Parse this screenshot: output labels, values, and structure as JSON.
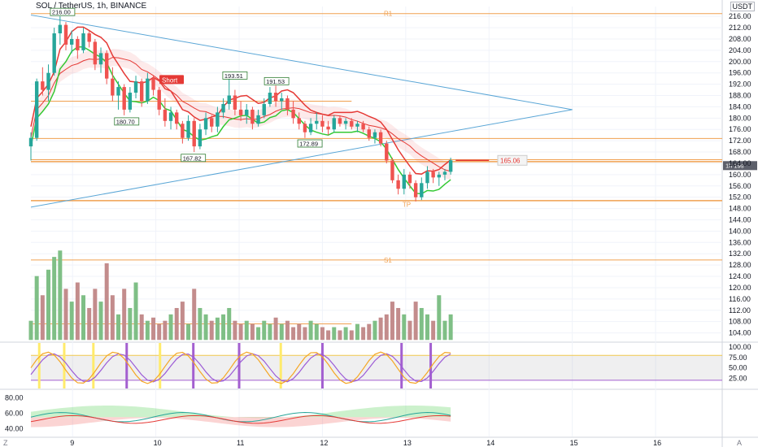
{
  "header": {
    "title": "SOL / TetherUS, 1h, BINANCE",
    "currency": "USDT"
  },
  "corners": {
    "bottom_left": "Z",
    "bottom_right": "A"
  },
  "colors": {
    "up": "#26a69a",
    "down": "#ef5350",
    "vol_up": "#7fbf86",
    "vol_down": "#c38c8c",
    "orange": "#f0a050",
    "blue_line": "#5aa6d6",
    "red_ma": "#e53935",
    "green_ma": "#34c934",
    "stoch_k": "#f5a623",
    "stoch_d": "#9c5bd6",
    "yellow_bar": "#ffeb6b",
    "purple_bar": "#a35fd0"
  },
  "chart_data": [
    {
      "type": "candlestick",
      "title": "SOL / TetherUS, 1h, BINANCE",
      "x_ticks": [
        "9",
        "10",
        "11",
        "12",
        "13",
        "14",
        "15",
        "16"
      ],
      "y_ticks": [
        216.0,
        212.0,
        208.0,
        204.0,
        200.0,
        196.0,
        192.0,
        188.0,
        184.0,
        180.0,
        176.0,
        172.0,
        168.0,
        164.0,
        160.0,
        156.0,
        152.0,
        148.0,
        144.0,
        140.0,
        136.0,
        132.0,
        128.0,
        124.0,
        120.0,
        116.0,
        112.0,
        108.0,
        104.0
      ],
      "ylim": [
        101.0,
        219.5
      ],
      "last_price": "165.06",
      "countdown": "1h 19s",
      "levels": [
        {
          "label": "R1",
          "value": 217.0
        },
        {
          "label": "S1",
          "value": 129.8
        }
      ],
      "horizontal_lines": [
        186.0,
        172.8,
        165.3,
        164.6,
        150.8,
        107.2
      ],
      "triangle": {
        "upper": [
          [
            8.5,
            216.5
          ],
          [
            15.0,
            183.0
          ]
        ],
        "lower": [
          [
            8.5,
            148.5
          ],
          [
            15.0,
            183.0
          ]
        ]
      },
      "annotations": [
        {
          "text": "216.00",
          "x": 8.88,
          "y": 216.0,
          "kind": "high"
        },
        {
          "text": "193.51",
          "x": 10.95,
          "y": 193.5,
          "kind": "high"
        },
        {
          "text": "191.53",
          "x": 11.45,
          "y": 191.5,
          "kind": "high"
        },
        {
          "text": "180.70",
          "x": 9.65,
          "y": 180.7,
          "kind": "low"
        },
        {
          "text": "167.82",
          "x": 10.45,
          "y": 167.8,
          "kind": "low"
        },
        {
          "text": "172.89",
          "x": 11.85,
          "y": 172.9,
          "kind": "low"
        },
        {
          "text": "Short",
          "x": 10.18,
          "y": 193.5,
          "kind": "signal"
        },
        {
          "text": "TP",
          "x": 13.0,
          "y": 151.5,
          "kind": "tp"
        }
      ],
      "candles": [
        {
          "x": 8.5,
          "o": 170.0,
          "h": 175.0,
          "l": 165.0,
          "c": 173.0
        },
        {
          "x": 8.57,
          "o": 173.0,
          "h": 194.0,
          "l": 172.0,
          "c": 193.0
        },
        {
          "x": 8.64,
          "o": 193.0,
          "h": 198.0,
          "l": 188.0,
          "c": 190.0
        },
        {
          "x": 8.71,
          "o": 190.0,
          "h": 199.0,
          "l": 186.0,
          "c": 196.0
        },
        {
          "x": 8.78,
          "o": 196.0,
          "h": 212.0,
          "l": 195.0,
          "c": 210.0
        },
        {
          "x": 8.85,
          "o": 210.0,
          "h": 216.0,
          "l": 206.0,
          "c": 213.0
        },
        {
          "x": 8.92,
          "o": 213.0,
          "h": 214.0,
          "l": 204.0,
          "c": 206.0
        },
        {
          "x": 8.99,
          "o": 206.0,
          "h": 211.0,
          "l": 203.0,
          "c": 208.0
        },
        {
          "x": 9.06,
          "o": 208.0,
          "h": 209.0,
          "l": 201.0,
          "c": 204.0
        },
        {
          "x": 9.13,
          "o": 204.0,
          "h": 212.0,
          "l": 203.0,
          "c": 210.0
        },
        {
          "x": 9.2,
          "o": 210.0,
          "h": 211.0,
          "l": 205.0,
          "c": 207.0
        },
        {
          "x": 9.27,
          "o": 207.0,
          "h": 208.0,
          "l": 197.0,
          "c": 199.0
        },
        {
          "x": 9.34,
          "o": 199.0,
          "h": 205.0,
          "l": 196.0,
          "c": 203.0
        },
        {
          "x": 9.41,
          "o": 203.0,
          "h": 204.0,
          "l": 192.0,
          "c": 194.0
        },
        {
          "x": 9.48,
          "o": 194.0,
          "h": 198.0,
          "l": 186.0,
          "c": 188.0
        },
        {
          "x": 9.55,
          "o": 188.0,
          "h": 193.0,
          "l": 183.0,
          "c": 191.0
        },
        {
          "x": 9.62,
          "o": 191.0,
          "h": 192.0,
          "l": 181.0,
          "c": 183.0
        },
        {
          "x": 9.69,
          "o": 183.0,
          "h": 191.0,
          "l": 182.0,
          "c": 189.0
        },
        {
          "x": 9.76,
          "o": 189.0,
          "h": 195.0,
          "l": 187.0,
          "c": 193.0
        },
        {
          "x": 9.83,
          "o": 193.0,
          "h": 194.0,
          "l": 184.0,
          "c": 186.0
        },
        {
          "x": 9.9,
          "o": 186.0,
          "h": 196.0,
          "l": 185.0,
          "c": 194.0
        },
        {
          "x": 9.97,
          "o": 194.0,
          "h": 195.0,
          "l": 188.0,
          "c": 190.0
        },
        {
          "x": 10.04,
          "o": 190.0,
          "h": 191.0,
          "l": 181.0,
          "c": 183.0
        },
        {
          "x": 10.11,
          "o": 183.0,
          "h": 187.0,
          "l": 177.0,
          "c": 179.0
        },
        {
          "x": 10.18,
          "o": 179.0,
          "h": 184.0,
          "l": 176.0,
          "c": 182.0
        },
        {
          "x": 10.25,
          "o": 182.0,
          "h": 183.0,
          "l": 176.0,
          "c": 178.0
        },
        {
          "x": 10.32,
          "o": 178.0,
          "h": 179.0,
          "l": 171.0,
          "c": 173.0
        },
        {
          "x": 10.39,
          "o": 173.0,
          "h": 181.0,
          "l": 172.0,
          "c": 179.0
        },
        {
          "x": 10.46,
          "o": 179.0,
          "h": 180.0,
          "l": 168.0,
          "c": 170.0
        },
        {
          "x": 10.53,
          "o": 170.0,
          "h": 178.0,
          "l": 169.0,
          "c": 176.0
        },
        {
          "x": 10.6,
          "o": 176.0,
          "h": 182.0,
          "l": 174.0,
          "c": 180.0
        },
        {
          "x": 10.67,
          "o": 180.0,
          "h": 181.0,
          "l": 175.0,
          "c": 177.0
        },
        {
          "x": 10.74,
          "o": 177.0,
          "h": 184.0,
          "l": 175.0,
          "c": 182.0
        },
        {
          "x": 10.81,
          "o": 182.0,
          "h": 187.0,
          "l": 180.0,
          "c": 185.0
        },
        {
          "x": 10.88,
          "o": 185.0,
          "h": 194.0,
          "l": 183.0,
          "c": 188.0
        },
        {
          "x": 10.95,
          "o": 188.0,
          "h": 190.0,
          "l": 181.0,
          "c": 183.0
        },
        {
          "x": 11.02,
          "o": 183.0,
          "h": 186.0,
          "l": 179.0,
          "c": 181.0
        },
        {
          "x": 11.09,
          "o": 181.0,
          "h": 185.0,
          "l": 178.0,
          "c": 183.0
        },
        {
          "x": 11.16,
          "o": 183.0,
          "h": 184.0,
          "l": 176.0,
          "c": 178.0
        },
        {
          "x": 11.23,
          "o": 178.0,
          "h": 183.0,
          "l": 177.0,
          "c": 181.0
        },
        {
          "x": 11.3,
          "o": 181.0,
          "h": 187.0,
          "l": 180.0,
          "c": 185.0
        },
        {
          "x": 11.37,
          "o": 185.0,
          "h": 191.0,
          "l": 184.0,
          "c": 189.0
        },
        {
          "x": 11.44,
          "o": 189.0,
          "h": 191.5,
          "l": 184.0,
          "c": 186.0
        },
        {
          "x": 11.51,
          "o": 186.0,
          "h": 189.0,
          "l": 183.0,
          "c": 187.0
        },
        {
          "x": 11.58,
          "o": 187.0,
          "h": 188.0,
          "l": 181.0,
          "c": 183.0
        },
        {
          "x": 11.65,
          "o": 183.0,
          "h": 186.0,
          "l": 178.0,
          "c": 180.0
        },
        {
          "x": 11.72,
          "o": 180.0,
          "h": 182.0,
          "l": 176.0,
          "c": 178.0
        },
        {
          "x": 11.79,
          "o": 178.0,
          "h": 179.0,
          "l": 173.0,
          "c": 175.0
        },
        {
          "x": 11.86,
          "o": 175.0,
          "h": 180.0,
          "l": 174.0,
          "c": 178.0
        },
        {
          "x": 11.93,
          "o": 178.0,
          "h": 182.0,
          "l": 176.0,
          "c": 179.0
        },
        {
          "x": 12.0,
          "o": 179.0,
          "h": 181.0,
          "l": 175.0,
          "c": 177.0
        },
        {
          "x": 12.07,
          "o": 177.0,
          "h": 179.0,
          "l": 174.0,
          "c": 176.0
        },
        {
          "x": 12.14,
          "o": 176.0,
          "h": 181.0,
          "l": 175.0,
          "c": 180.0
        },
        {
          "x": 12.21,
          "o": 180.0,
          "h": 181.0,
          "l": 177.0,
          "c": 178.0
        },
        {
          "x": 12.28,
          "o": 178.0,
          "h": 180.0,
          "l": 176.0,
          "c": 179.0
        },
        {
          "x": 12.35,
          "o": 179.0,
          "h": 180.0,
          "l": 176.0,
          "c": 177.0
        },
        {
          "x": 12.42,
          "o": 177.0,
          "h": 179.0,
          "l": 175.0,
          "c": 178.0
        },
        {
          "x": 12.49,
          "o": 178.0,
          "h": 179.0,
          "l": 175.0,
          "c": 176.0
        },
        {
          "x": 12.56,
          "o": 176.0,
          "h": 177.0,
          "l": 172.0,
          "c": 173.0
        },
        {
          "x": 12.63,
          "o": 173.0,
          "h": 176.0,
          "l": 171.0,
          "c": 175.0
        },
        {
          "x": 12.7,
          "o": 175.0,
          "h": 176.0,
          "l": 170.0,
          "c": 171.0
        },
        {
          "x": 12.77,
          "o": 171.0,
          "h": 172.0,
          "l": 164.0,
          "c": 165.0
        },
        {
          "x": 12.84,
          "o": 165.0,
          "h": 166.0,
          "l": 157.0,
          "c": 158.0
        },
        {
          "x": 12.91,
          "o": 158.0,
          "h": 160.0,
          "l": 153.0,
          "c": 155.0
        },
        {
          "x": 12.98,
          "o": 155.0,
          "h": 162.0,
          "l": 153.0,
          "c": 160.0
        },
        {
          "x": 13.05,
          "o": 160.0,
          "h": 161.0,
          "l": 155.0,
          "c": 157.0
        },
        {
          "x": 13.12,
          "o": 157.0,
          "h": 158.0,
          "l": 150.5,
          "c": 152.0
        },
        {
          "x": 13.19,
          "o": 152.0,
          "h": 159.0,
          "l": 151.0,
          "c": 157.0
        },
        {
          "x": 13.26,
          "o": 157.0,
          "h": 163.0,
          "l": 155.0,
          "c": 161.0
        },
        {
          "x": 13.33,
          "o": 161.0,
          "h": 162.0,
          "l": 157.0,
          "c": 159.0
        },
        {
          "x": 13.4,
          "o": 159.0,
          "h": 161.0,
          "l": 156.0,
          "c": 160.0
        },
        {
          "x": 13.47,
          "o": 160.0,
          "h": 162.0,
          "l": 158.0,
          "c": 161.0
        },
        {
          "x": 13.54,
          "o": 161.0,
          "h": 166.0,
          "l": 160.0,
          "c": 165.06
        }
      ],
      "volume": [
        6,
        20,
        14,
        22,
        26,
        28,
        16,
        12,
        18,
        14,
        10,
        16,
        12,
        24,
        14,
        8,
        16,
        10,
        18,
        8,
        6,
        7,
        5,
        6,
        8,
        10,
        12,
        5,
        16,
        10,
        8,
        6,
        7,
        8,
        10,
        6,
        5,
        6,
        5,
        4,
        6,
        5,
        7,
        5,
        6,
        4,
        5,
        4,
        6,
        5,
        4,
        3,
        4,
        3,
        4,
        3,
        5,
        4,
        5,
        6,
        7,
        8,
        12,
        10,
        8,
        6,
        12,
        10,
        8,
        6,
        14,
        6,
        8
      ]
    },
    {
      "type": "line",
      "name": "stochastic",
      "y_ticks": [
        100.0,
        75.0,
        50.0,
        25.0
      ],
      "ylim": [
        0,
        110
      ],
      "bands": [
        20,
        80
      ]
    },
    {
      "type": "area",
      "name": "oscillator",
      "y_ticks": [
        80.0,
        60.0,
        40.0
      ],
      "ylim": [
        30,
        90
      ]
    }
  ]
}
